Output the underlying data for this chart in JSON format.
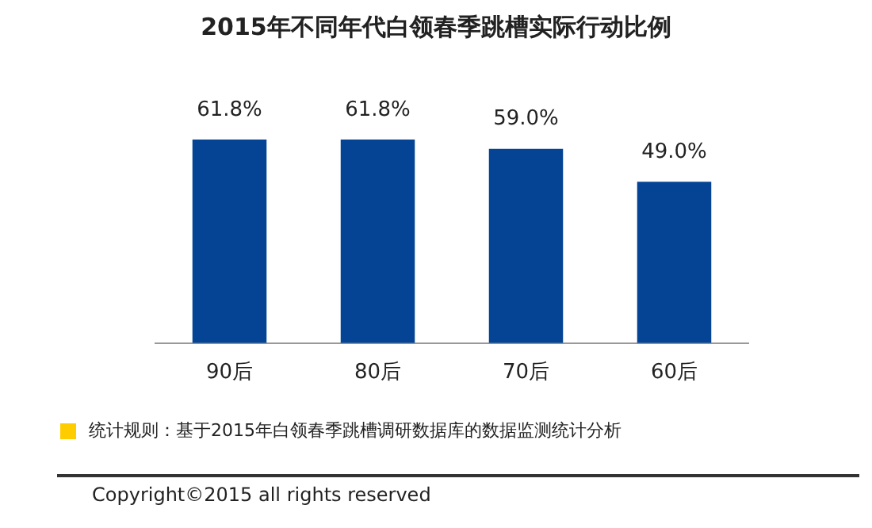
{
  "chart_data": {
    "type": "bar",
    "title": "2015年不同年代白领春季跳槽实际行动比例",
    "categories": [
      "90后",
      "80后",
      "70后",
      "60后"
    ],
    "values": [
      61.8,
      61.8,
      59.0,
      49.0
    ],
    "color": "#054494",
    "value_labels": [
      "61.8%",
      "61.8%",
      "59.0%",
      "49.0%"
    ],
    "tick_labels": "x",
    "grid": false,
    "legend": false,
    "annotations": [
      "统计规则：基于2015年白领春季跳槽调研数据库的数据监测统计分析",
      "Copyright©2015 all rights reserved"
    ]
  }
}
